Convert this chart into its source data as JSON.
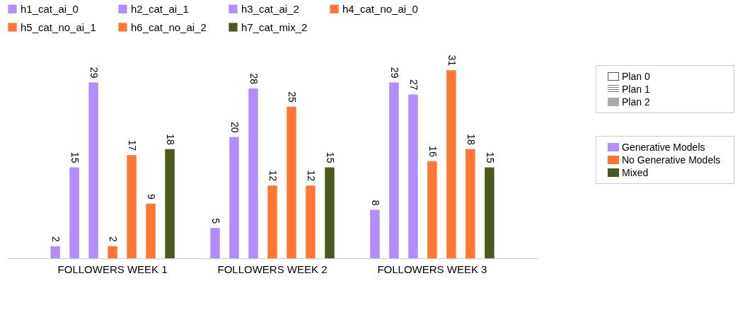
{
  "chart_data": {
    "type": "bar",
    "categories": [
      "FOLLOWERS WEEK 1",
      "FOLLOWERS WEEK 2",
      "FOLLOWERS WEEK 3"
    ],
    "series": [
      {
        "name": "h1_cat_ai_0",
        "color": "#b28dff",
        "values": [
          2,
          5,
          8
        ]
      },
      {
        "name": "h2_cat_ai_1",
        "color": "#b28dff",
        "values": [
          15,
          20,
          29
        ]
      },
      {
        "name": "h3_cat_ai_2",
        "color": "#b28dff",
        "values": [
          29,
          28,
          27
        ]
      },
      {
        "name": "h4_cat_no_ai_0",
        "color": "#ff7733",
        "values": [
          2,
          12,
          16
        ]
      },
      {
        "name": "h5_cat_no_ai_1",
        "color": "#ff7733",
        "values": [
          17,
          25,
          31
        ]
      },
      {
        "name": "h6_cat_no_ai_2",
        "color": "#ff7733",
        "values": [
          9,
          12,
          18
        ]
      },
      {
        "name": "h7_cat_mix_2",
        "color": "#4a5a1c",
        "values": [
          18,
          15,
          15
        ]
      }
    ],
    "data_labels": true,
    "legend": "top",
    "annotations": [
      "Plan 0",
      "Plan 1",
      "Plan 2",
      "Generative Models",
      "No Generative Models",
      "Mixed"
    ]
  }
}
